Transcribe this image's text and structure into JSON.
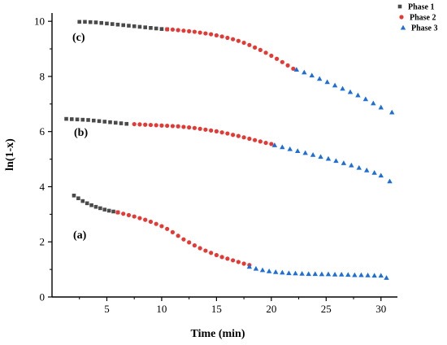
{
  "chart_data": {
    "type": "scatter",
    "xlabel": "Time (min)",
    "ylabel": "ln(1-x)",
    "xlim": [
      0,
      31.5
    ],
    "ylim": [
      0,
      10.3
    ],
    "xticks": [
      "5",
      "10",
      "15",
      "20",
      "25",
      "30"
    ],
    "yticks": [
      "0",
      "2",
      "4",
      "6",
      "8",
      "10"
    ],
    "legend_position": "top-right",
    "annotations": [
      "(a)",
      "(b)",
      "(c)"
    ],
    "series": [
      {
        "name": "Phase 1",
        "marker": "square",
        "color": "#4a4a4a",
        "points": [
          [
            2.0,
            3.68
          ],
          [
            2.4,
            3.58
          ],
          [
            2.8,
            3.48
          ],
          [
            3.2,
            3.4
          ],
          [
            3.6,
            3.33
          ],
          [
            4.0,
            3.27
          ],
          [
            4.4,
            3.22
          ],
          [
            4.8,
            3.17
          ],
          [
            5.2,
            3.13
          ],
          [
            5.6,
            3.1
          ],
          [
            6.0,
            3.07
          ],
          [
            1.3,
            6.46
          ],
          [
            1.8,
            6.45
          ],
          [
            2.3,
            6.44
          ],
          [
            2.8,
            6.43
          ],
          [
            3.3,
            6.42
          ],
          [
            3.8,
            6.4
          ],
          [
            4.3,
            6.38
          ],
          [
            4.8,
            6.36
          ],
          [
            5.3,
            6.34
          ],
          [
            5.8,
            6.32
          ],
          [
            6.3,
            6.3
          ],
          [
            6.8,
            6.28
          ],
          [
            2.5,
            9.98
          ],
          [
            3.0,
            9.98
          ],
          [
            3.5,
            9.97
          ],
          [
            4.0,
            9.96
          ],
          [
            4.5,
            9.94
          ],
          [
            5.0,
            9.92
          ],
          [
            5.5,
            9.9
          ],
          [
            6.0,
            9.88
          ],
          [
            6.5,
            9.86
          ],
          [
            7.0,
            9.84
          ],
          [
            7.5,
            9.82
          ],
          [
            8.0,
            9.8
          ],
          [
            8.5,
            9.78
          ],
          [
            9.0,
            9.76
          ],
          [
            9.5,
            9.74
          ],
          [
            10.0,
            9.72
          ],
          [
            10.5,
            9.71
          ]
        ]
      },
      {
        "name": "Phase 2",
        "marker": "circle",
        "color": "#e53935",
        "points": [
          [
            6.0,
            3.07
          ],
          [
            6.5,
            3.02
          ],
          [
            7.0,
            2.97
          ],
          [
            7.5,
            2.92
          ],
          [
            8.0,
            2.86
          ],
          [
            8.5,
            2.8
          ],
          [
            9.0,
            2.73
          ],
          [
            9.5,
            2.65
          ],
          [
            10.0,
            2.57
          ],
          [
            10.5,
            2.47
          ],
          [
            11.0,
            2.35
          ],
          [
            11.5,
            2.22
          ],
          [
            12.0,
            2.09
          ],
          [
            12.5,
            1.98
          ],
          [
            13.0,
            1.87
          ],
          [
            13.5,
            1.77
          ],
          [
            14.0,
            1.68
          ],
          [
            14.5,
            1.6
          ],
          [
            15.0,
            1.52
          ],
          [
            15.5,
            1.45
          ],
          [
            16.0,
            1.39
          ],
          [
            16.5,
            1.33
          ],
          [
            17.0,
            1.27
          ],
          [
            17.5,
            1.21
          ],
          [
            18.0,
            1.16
          ],
          [
            7.5,
            6.27
          ],
          [
            8.0,
            6.26
          ],
          [
            8.5,
            6.25
          ],
          [
            9.0,
            6.24
          ],
          [
            9.5,
            6.23
          ],
          [
            10.0,
            6.22
          ],
          [
            10.5,
            6.21
          ],
          [
            11.0,
            6.2
          ],
          [
            11.5,
            6.19
          ],
          [
            12.0,
            6.17
          ],
          [
            12.5,
            6.15
          ],
          [
            13.0,
            6.13
          ],
          [
            13.5,
            6.1
          ],
          [
            14.0,
            6.07
          ],
          [
            14.5,
            6.04
          ],
          [
            15.0,
            6.01
          ],
          [
            15.5,
            5.97
          ],
          [
            16.0,
            5.93
          ],
          [
            16.5,
            5.88
          ],
          [
            17.0,
            5.84
          ],
          [
            17.5,
            5.79
          ],
          [
            18.0,
            5.74
          ],
          [
            18.5,
            5.69
          ],
          [
            19.0,
            5.64
          ],
          [
            19.5,
            5.59
          ],
          [
            20.0,
            5.55
          ],
          [
            10.5,
            9.71
          ],
          [
            11.0,
            9.7
          ],
          [
            11.5,
            9.68
          ],
          [
            12.0,
            9.66
          ],
          [
            12.5,
            9.64
          ],
          [
            13.0,
            9.62
          ],
          [
            13.5,
            9.59
          ],
          [
            14.0,
            9.56
          ],
          [
            14.5,
            9.53
          ],
          [
            15.0,
            9.49
          ],
          [
            15.5,
            9.45
          ],
          [
            16.0,
            9.4
          ],
          [
            16.5,
            9.35
          ],
          [
            17.0,
            9.29
          ],
          [
            17.5,
            9.22
          ],
          [
            18.0,
            9.14
          ],
          [
            18.5,
            9.05
          ],
          [
            19.0,
            8.96
          ],
          [
            19.5,
            8.86
          ],
          [
            20.0,
            8.75
          ],
          [
            20.5,
            8.64
          ],
          [
            21.0,
            8.52
          ],
          [
            21.5,
            8.4
          ],
          [
            22.0,
            8.28
          ]
        ]
      },
      {
        "name": "Phase 3",
        "marker": "triangle",
        "color": "#1e6ed8",
        "points": [
          [
            18.0,
            1.1
          ],
          [
            18.6,
            1.03
          ],
          [
            19.2,
            0.98
          ],
          [
            19.8,
            0.94
          ],
          [
            20.4,
            0.91
          ],
          [
            21.0,
            0.89
          ],
          [
            21.6,
            0.87
          ],
          [
            22.2,
            0.86
          ],
          [
            22.8,
            0.85
          ],
          [
            23.4,
            0.84
          ],
          [
            24.0,
            0.84
          ],
          [
            24.6,
            0.83
          ],
          [
            25.2,
            0.83
          ],
          [
            25.8,
            0.82
          ],
          [
            26.4,
            0.82
          ],
          [
            27.0,
            0.81
          ],
          [
            27.6,
            0.8
          ],
          [
            28.2,
            0.8
          ],
          [
            28.8,
            0.79
          ],
          [
            29.4,
            0.78
          ],
          [
            30.0,
            0.78
          ],
          [
            30.5,
            0.7
          ],
          [
            20.3,
            5.51
          ],
          [
            21.0,
            5.44
          ],
          [
            21.7,
            5.37
          ],
          [
            22.4,
            5.3
          ],
          [
            23.1,
            5.23
          ],
          [
            23.8,
            5.16
          ],
          [
            24.5,
            5.09
          ],
          [
            25.2,
            5.02
          ],
          [
            25.9,
            4.94
          ],
          [
            26.6,
            4.86
          ],
          [
            27.3,
            4.78
          ],
          [
            28.0,
            4.69
          ],
          [
            28.7,
            4.6
          ],
          [
            29.4,
            4.51
          ],
          [
            30.0,
            4.41
          ],
          [
            30.8,
            4.2
          ],
          [
            22.3,
            8.25
          ],
          [
            23.0,
            8.15
          ],
          [
            23.7,
            8.04
          ],
          [
            24.4,
            7.92
          ],
          [
            25.1,
            7.8
          ],
          [
            25.8,
            7.68
          ],
          [
            26.5,
            7.56
          ],
          [
            27.2,
            7.44
          ],
          [
            27.9,
            7.32
          ],
          [
            28.6,
            7.18
          ],
          [
            29.3,
            7.03
          ],
          [
            30.0,
            6.88
          ],
          [
            31.0,
            6.7
          ]
        ]
      }
    ]
  }
}
